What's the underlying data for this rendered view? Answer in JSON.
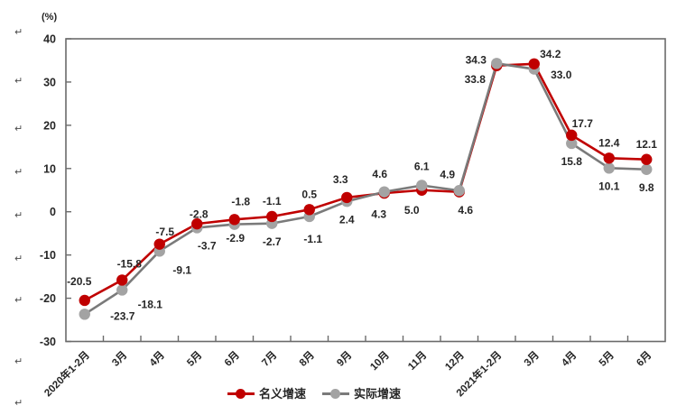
{
  "unit_label": "(%)",
  "return_marks": {
    "glyph": "↵"
  },
  "chart_data": {
    "type": "line",
    "title": "",
    "unit": "(%)",
    "categories": [
      "2020年1-2月",
      "3月",
      "4月",
      "5月",
      "6月",
      "7月",
      "8月",
      "9月",
      "10月",
      "11月",
      "12月",
      "2021年1-2月",
      "3月",
      "4月",
      "5月",
      "6月"
    ],
    "series": [
      {
        "name": "名义增速",
        "color": "#c00000",
        "line_color": "#c00000",
        "marker_color": "#c00000",
        "values": [
          -20.5,
          -15.8,
          -7.5,
          -2.8,
          -1.8,
          -1.1,
          0.5,
          3.3,
          4.3,
          5.0,
          4.6,
          33.8,
          34.2,
          17.7,
          12.4,
          12.1
        ]
      },
      {
        "name": "实际增速",
        "color": "#a6a6a6",
        "line_color": "#7a7a7a",
        "marker_color": "#a3a3a3",
        "values": [
          -23.7,
          -18.1,
          -9.1,
          -3.7,
          -2.9,
          -2.7,
          -1.1,
          2.4,
          4.6,
          6.1,
          4.9,
          34.3,
          33.0,
          15.8,
          10.1,
          9.8
        ]
      }
    ],
    "ylim": [
      -30,
      40
    ],
    "ytick_step": 10,
    "yticks": [
      "40",
      "30",
      "20",
      "10",
      "0",
      "-10",
      "-20",
      "-30"
    ],
    "xlabel": "",
    "ylabel": "(%)",
    "grid": false,
    "data_labels": true,
    "legend_position": "bottom"
  }
}
